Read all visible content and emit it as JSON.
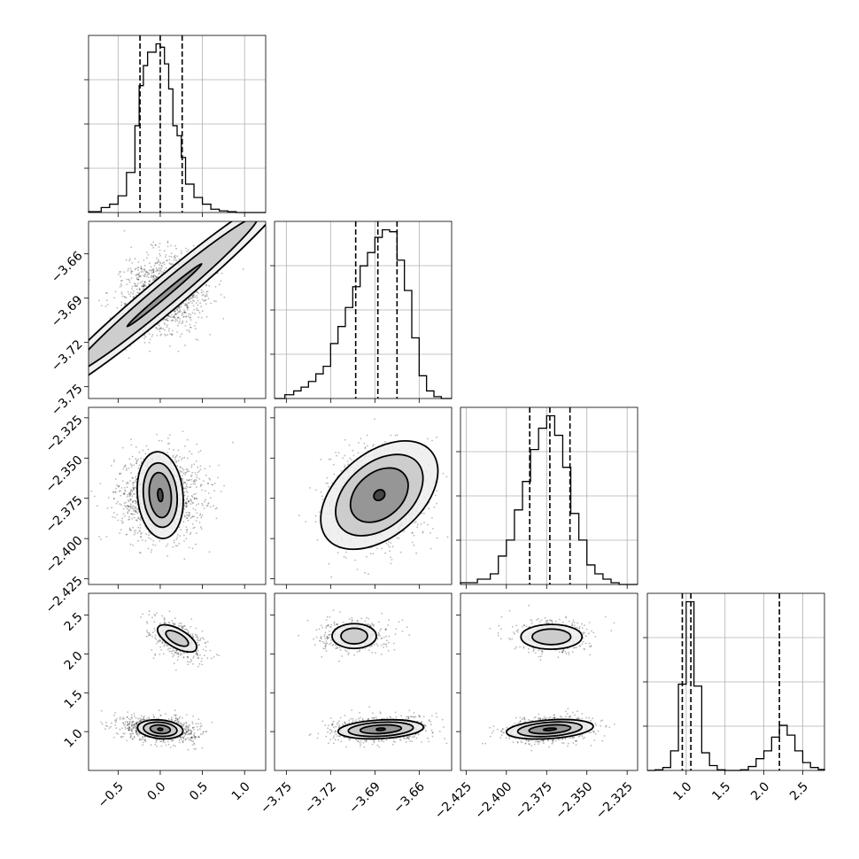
{
  "chart_data": {
    "type": "corner",
    "grid": true,
    "parameters": [
      {
        "id": "p0",
        "range": [
          -0.85,
          1.25
        ],
        "ticks": [
          -0.5,
          0.0,
          0.5,
          1.0
        ],
        "tick_labels": [
          "−0.5",
          "0.0",
          "0.5",
          "1.0"
        ],
        "quantiles": [
          -0.24,
          0.0,
          0.26
        ],
        "hist": {
          "edges": [
            -0.85,
            -0.7,
            -0.6,
            -0.5,
            -0.4,
            -0.3,
            -0.25,
            -0.2,
            -0.15,
            -0.1,
            -0.05,
            0.0,
            0.05,
            0.1,
            0.15,
            0.2,
            0.25,
            0.3,
            0.4,
            0.5,
            0.6,
            0.7,
            0.8,
            0.9,
            1.25
          ],
          "counts": [
            0.5,
            3,
            5,
            10,
            24,
            52,
            76,
            88,
            96,
            96,
            101,
            99,
            89,
            74,
            52,
            46,
            33,
            17,
            9,
            5,
            2,
            1,
            0.5,
            0
          ]
        },
        "mode": 0.0
      },
      {
        "id": "p1",
        "range": [
          -3.758,
          -3.638
        ],
        "ticks": [
          -3.75,
          -3.72,
          -3.69,
          -3.66
        ],
        "tick_labels": [
          "−3.75",
          "−3.72",
          "−3.69",
          "−3.66"
        ],
        "quantiles": [
          -3.703,
          -3.688,
          -3.675
        ],
        "hist": {
          "edges": [
            -3.758,
            -3.751,
            -3.745,
            -3.74,
            -3.735,
            -3.73,
            -3.725,
            -3.72,
            -3.715,
            -3.71,
            -3.705,
            -3.7,
            -3.695,
            -3.69,
            -3.685,
            -3.68,
            -3.675,
            -3.67,
            -3.665,
            -3.66,
            -3.655,
            -3.65,
            -3.645,
            -3.638
          ],
          "counts": [
            0,
            2,
            4,
            6,
            9,
            13,
            17,
            29,
            38,
            48,
            59,
            70,
            77,
            85,
            89,
            88,
            73,
            57,
            32,
            12,
            4,
            1,
            0
          ]
        },
        "mode": -3.685
      },
      {
        "id": "p2",
        "range": [
          -2.4285,
          -2.3185
        ],
        "ticks": [
          -2.425,
          -2.4,
          -2.375,
          -2.35,
          -2.325
        ],
        "tick_labels": [
          "−2.425",
          "−2.400",
          "−2.375",
          "−2.350",
          "−2.325"
        ],
        "quantiles": [
          -2.3855,
          -2.373,
          -2.3605
        ],
        "hist": {
          "edges": [
            -2.4285,
            -2.418,
            -2.41,
            -2.405,
            -2.4,
            -2.395,
            -2.39,
            -2.385,
            -2.38,
            -2.375,
            -2.37,
            -2.365,
            -2.36,
            -2.355,
            -2.35,
            -2.345,
            -2.34,
            -2.335,
            -2.33,
            -2.3185
          ],
          "counts": [
            1,
            3,
            6,
            16,
            25,
            42,
            58,
            76,
            88,
            95,
            84,
            66,
            40,
            25,
            11,
            6,
            3,
            1,
            0
          ]
        },
        "mode": -2.373
      },
      {
        "id": "p3",
        "range": [
          0.5,
          2.78
        ],
        "ticks": [
          1.0,
          1.5,
          2.0,
          2.5
        ],
        "tick_labels": [
          "1.0",
          "1.5",
          "2.0",
          "2.5"
        ],
        "quantiles": [
          0.95,
          1.06,
          2.2
        ],
        "hist": {
          "edges": [
            0.5,
            0.6,
            0.7,
            0.8,
            0.9,
            1.0,
            1.1,
            1.2,
            1.3,
            1.4,
            1.5,
            1.6,
            1.7,
            1.8,
            1.9,
            2.0,
            2.1,
            2.2,
            2.3,
            2.4,
            2.5,
            2.6,
            2.7,
            2.78
          ],
          "counts": [
            0,
            0.3,
            1.5,
            10,
            44,
            86,
            43,
            9,
            2.5,
            0.3,
            0,
            0,
            0.3,
            2,
            6,
            10,
            17,
            23,
            18,
            10,
            4,
            1.5,
            0.5
          ]
        },
        "modes": [
          1.02,
          2.2
        ]
      }
    ],
    "pairs": [
      {
        "x": "p0",
        "y": "p1",
        "blobs": [
          {
            "cx": 0.05,
            "cy": -3.688,
            "sx": 0.21,
            "sy": 0.0145,
            "rot": -50,
            "w": 1.0,
            "levels": [
              [
                0.2,
                0.2,
                0.4
              ],
              [
                0.13,
                0.15,
                0.3
              ],
              [
                0.03,
                0.06,
                0.12
              ]
            ]
          }
        ]
      },
      {
        "x": "p0",
        "y": "p2",
        "blobs": [
          {
            "cx": 0.0,
            "cy": -2.373,
            "sx": 0.24,
            "sy": 0.0125,
            "rot": 5,
            "w": 1.0,
            "levels": [
              [
                0.27,
                0.027
              ],
              [
                0.2,
                0.02
              ],
              [
                0.13,
                0.014
              ],
              [
                0.03,
                0.004
              ]
            ]
          }
        ]
      },
      {
        "x": "p1",
        "y": "p2",
        "blobs": [
          {
            "cx": -3.687,
            "cy": -2.373,
            "sx": 0.016,
            "sy": 0.0128,
            "rot": 40,
            "w": 1.0,
            "levels": [
              [
                0.046,
                0.026
              ],
              [
                0.034,
                0.02
              ],
              [
                0.022,
                0.014
              ],
              [
                0.004,
                0.003
              ]
            ]
          }
        ]
      },
      {
        "x": "p0",
        "y": "p3",
        "blobs": [
          {
            "cx": 0.0,
            "cy": 1.03,
            "sx": 0.21,
            "sy": 0.075,
            "rot": -5,
            "w": 0.75,
            "levels": [
              [
                0.27,
                0.12
              ],
              [
                0.2,
                0.09
              ],
              [
                0.12,
                0.055
              ],
              [
                0.03,
                0.015
              ]
            ]
          },
          {
            "cx": 0.2,
            "cy": 2.2,
            "sx": 0.17,
            "sy": 0.1,
            "rot": -30,
            "w": 0.35,
            "levels": [
              [
                0.26,
                0.12
              ],
              [
                0.15,
                0.07
              ]
            ]
          }
        ]
      },
      {
        "x": "p1",
        "y": "p3",
        "blobs": [
          {
            "cx": -3.686,
            "cy": 1.03,
            "sx": 0.0155,
            "sy": 0.075,
            "rot": 3,
            "w": 0.75,
            "levels": [
              [
                0.029,
                0.12
              ],
              [
                0.022,
                0.09
              ],
              [
                0.014,
                0.055
              ],
              [
                0.003,
                0.015
              ]
            ]
          },
          {
            "cx": -3.704,
            "cy": 2.23,
            "sx": 0.011,
            "sy": 0.1,
            "rot": 0,
            "w": 0.35,
            "levels": [
              [
                0.015,
                0.16
              ],
              [
                0.009,
                0.1
              ]
            ]
          }
        ]
      },
      {
        "x": "p2",
        "y": "p3",
        "blobs": [
          {
            "cx": -2.373,
            "cy": 1.03,
            "sx": 0.0125,
            "sy": 0.075,
            "rot": 4,
            "w": 0.75,
            "levels": [
              [
                0.027,
                0.12
              ],
              [
                0.02,
                0.09
              ],
              [
                0.013,
                0.055
              ],
              [
                0.004,
                0.015
              ]
            ]
          },
          {
            "cx": -2.372,
            "cy": 2.22,
            "sx": 0.0115,
            "sy": 0.1,
            "rot": 0,
            "w": 0.35,
            "levels": [
              [
                0.019,
                0.16
              ],
              [
                0.012,
                0.1
              ]
            ]
          }
        ]
      }
    ],
    "scatter_points_per_panel": 1400,
    "colors": {
      "ink": "#000000",
      "grid": "#b0b0b0",
      "scatter": "#000000"
    }
  }
}
